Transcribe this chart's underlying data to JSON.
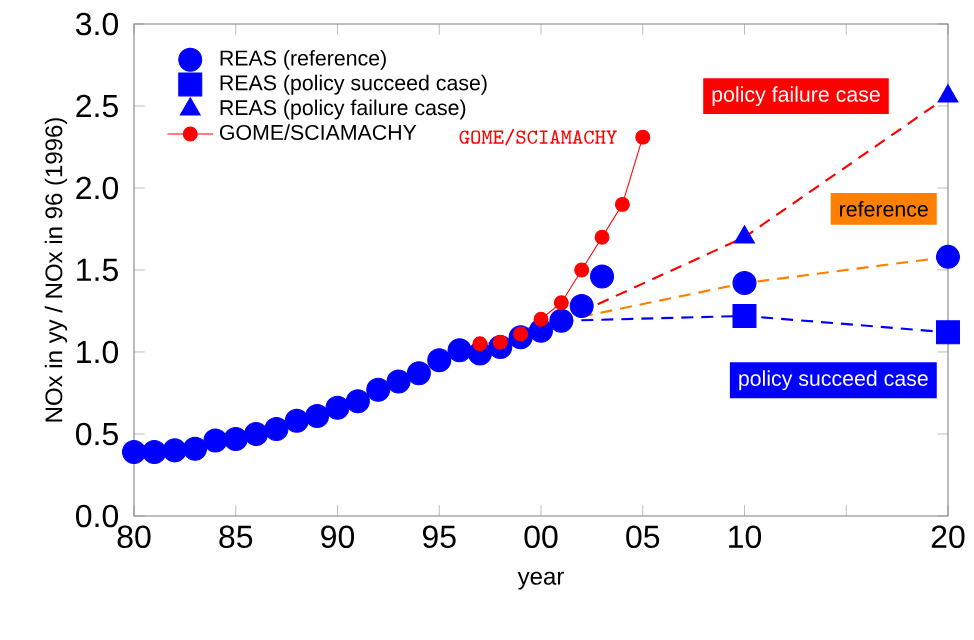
{
  "chart_data": {
    "type": "line",
    "xlabel": "year",
    "ylabel": "NOx in yy / NOx in 96 (1996)",
    "xlim": [
      1980,
      2020
    ],
    "ylim": [
      0,
      3
    ],
    "xticks": [
      {
        "value": 1980,
        "label": "80"
      },
      {
        "value": 1985,
        "label": "85"
      },
      {
        "value": 1990,
        "label": "90"
      },
      {
        "value": 1995,
        "label": "95"
      },
      {
        "value": 2000,
        "label": "00"
      },
      {
        "value": 2005,
        "label": "05"
      },
      {
        "value": 2010,
        "label": "10"
      },
      {
        "value": 2015,
        "label": null
      },
      {
        "value": 2020,
        "label": "20"
      }
    ],
    "yticks": [
      {
        "value": 0,
        "label": "0.0"
      },
      {
        "value": 0.5,
        "label": "0.5"
      },
      {
        "value": 1,
        "label": "1.0"
      },
      {
        "value": 1.5,
        "label": "1.5"
      },
      {
        "value": 2,
        "label": "2.0"
      },
      {
        "value": 2.5,
        "label": "2.5"
      },
      {
        "value": 3,
        "label": "3.0"
      }
    ],
    "grid": false,
    "legend": "top left",
    "series": [
      {
        "name": "REAS (reference)",
        "type": "scatter",
        "marker": "circle",
        "color": "#0000ff",
        "x": [
          1980,
          1981,
          1982,
          1983,
          1984,
          1985,
          1986,
          1987,
          1988,
          1989,
          1990,
          1991,
          1992,
          1993,
          1994,
          1995,
          1996,
          1997,
          1998,
          1999,
          2000,
          2001,
          2002,
          2003,
          2010,
          2020
        ],
        "values": [
          0.39,
          0.39,
          0.4,
          0.41,
          0.46,
          0.47,
          0.5,
          0.53,
          0.58,
          0.61,
          0.66,
          0.7,
          0.77,
          0.82,
          0.87,
          0.95,
          1.01,
          0.99,
          1.03,
          1.09,
          1.13,
          1.19,
          1.28,
          1.46,
          1.42,
          1.58
        ]
      },
      {
        "name": "REAS (policy succeed case)",
        "type": "scatter",
        "marker": "square",
        "color": "#0000ff",
        "x": [
          2010,
          2020
        ],
        "values": [
          1.22,
          1.12
        ]
      },
      {
        "name": "REAS (policy failure case)",
        "type": "scatter",
        "marker": "triangle",
        "color": "#0000ff",
        "x": [
          2010,
          2020
        ],
        "values": [
          1.7,
          2.56
        ]
      },
      {
        "name": "GOME/SCIAMACHY",
        "marker": "circle",
        "line_style": "solid",
        "color": "#ff0000",
        "x": [
          1997,
          1998,
          1999,
          2000,
          2001,
          2002,
          2003,
          2004,
          2005
        ],
        "values": [
          1.05,
          1.06,
          1.11,
          1.2,
          1.3,
          1.5,
          1.7,
          1.9,
          2.31
        ]
      },
      {
        "name": "policy failure case",
        "marker": "none",
        "line_style": "dashed",
        "color": "#ff0000",
        "x": [
          2001,
          2010,
          2020
        ],
        "values": [
          1.19,
          1.7,
          2.56
        ]
      },
      {
        "name": "reference",
        "marker": "none",
        "line_style": "dashed",
        "color": "#ff8000",
        "x": [
          2001,
          2010,
          2020
        ],
        "values": [
          1.19,
          1.42,
          1.58
        ]
      },
      {
        "name": "policy succeed case",
        "marker": "none",
        "line_style": "dashed",
        "color": "#0000ff",
        "x": [
          2001,
          2010,
          2020
        ],
        "values": [
          1.19,
          1.22,
          1.12
        ]
      }
    ]
  }
}
